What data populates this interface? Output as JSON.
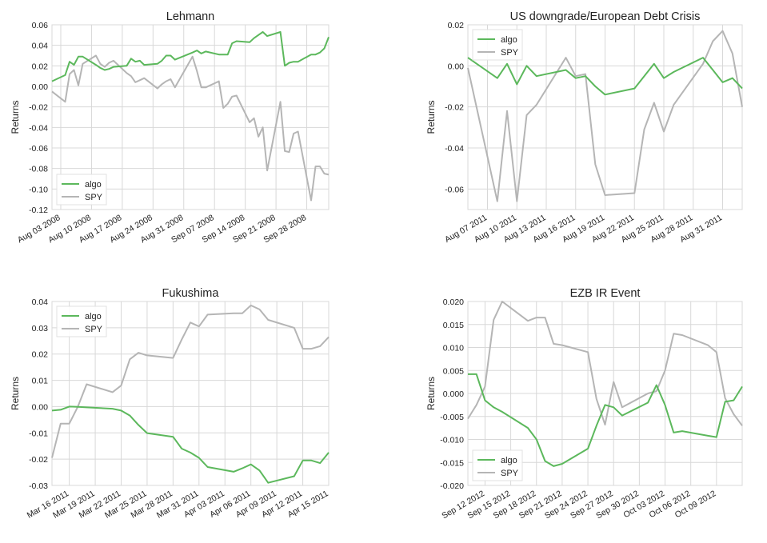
{
  "colors": {
    "algo": "#5cb85c",
    "spy": "#b5b5b5",
    "grid": "#d8d8d8"
  },
  "chart_data": [
    {
      "type": "line",
      "title": "Lehmann",
      "ylabel": "Returns",
      "ylim": [
        -0.12,
        0.06
      ],
      "yticks": [
        -0.12,
        -0.1,
        -0.08,
        -0.06,
        -0.04,
        -0.02,
        0.0,
        0.02,
        0.04,
        0.06
      ],
      "ytick_labels": [
        "-0.12",
        "-0.10",
        "-0.08",
        "-0.06",
        "-0.04",
        "-0.02",
        "0.00",
        "0.02",
        "0.04",
        "0.06"
      ],
      "xlim": [
        "2008-08-01",
        "2008-10-03"
      ],
      "xticks": [
        "2008-08-03",
        "2008-08-10",
        "2008-08-17",
        "2008-08-24",
        "2008-08-31",
        "2008-09-07",
        "2008-09-14",
        "2008-09-21",
        "2008-09-28"
      ],
      "xtick_labels": [
        "Aug 03 2008",
        "Aug 10 2008",
        "Aug 17 2008",
        "Aug 24 2008",
        "Aug 31 2008",
        "Sep 07 2008",
        "Sep 14 2008",
        "Sep 21 2008",
        "Sep 28 2008"
      ],
      "legend": "lower-left",
      "series": [
        {
          "name": "algo",
          "x": [
            "2008-08-01",
            "2008-08-04",
            "2008-08-05",
            "2008-08-06",
            "2008-08-07",
            "2008-08-08",
            "2008-08-11",
            "2008-08-12",
            "2008-08-13",
            "2008-08-14",
            "2008-08-15",
            "2008-08-18",
            "2008-08-19",
            "2008-08-20",
            "2008-08-21",
            "2008-08-22",
            "2008-08-25",
            "2008-08-26",
            "2008-08-27",
            "2008-08-28",
            "2008-08-29",
            "2008-09-02",
            "2008-09-03",
            "2008-09-04",
            "2008-09-05",
            "2008-09-08",
            "2008-09-09",
            "2008-09-10",
            "2008-09-11",
            "2008-09-12",
            "2008-09-15",
            "2008-09-16",
            "2008-09-17",
            "2008-09-18",
            "2008-09-19",
            "2008-09-22",
            "2008-09-23",
            "2008-09-24",
            "2008-09-25",
            "2008-09-26",
            "2008-09-29",
            "2008-09-30",
            "2008-10-01",
            "2008-10-02",
            "2008-10-03"
          ],
          "y": [
            0.005,
            0.011,
            0.024,
            0.021,
            0.029,
            0.029,
            0.021,
            0.018,
            0.016,
            0.017,
            0.019,
            0.02,
            0.027,
            0.024,
            0.025,
            0.021,
            0.022,
            0.025,
            0.03,
            0.03,
            0.026,
            0.033,
            0.035,
            0.032,
            0.034,
            0.031,
            0.031,
            0.031,
            0.042,
            0.044,
            0.043,
            0.047,
            0.05,
            0.053,
            0.049,
            0.053,
            0.02,
            0.023,
            0.024,
            0.024,
            0.031,
            0.031,
            0.033,
            0.037,
            0.048
          ]
        },
        {
          "name": "SPY",
          "x": [
            "2008-08-01",
            "2008-08-04",
            "2008-08-05",
            "2008-08-06",
            "2008-08-07",
            "2008-08-08",
            "2008-08-11",
            "2008-08-12",
            "2008-08-13",
            "2008-08-14",
            "2008-08-15",
            "2008-08-18",
            "2008-08-19",
            "2008-08-20",
            "2008-08-21",
            "2008-08-22",
            "2008-08-25",
            "2008-08-26",
            "2008-08-27",
            "2008-08-28",
            "2008-08-29",
            "2008-09-02",
            "2008-09-03",
            "2008-09-04",
            "2008-09-05",
            "2008-09-08",
            "2008-09-09",
            "2008-09-10",
            "2008-09-11",
            "2008-09-12",
            "2008-09-15",
            "2008-09-16",
            "2008-09-17",
            "2008-09-18",
            "2008-09-19",
            "2008-09-22",
            "2008-09-23",
            "2008-09-24",
            "2008-09-25",
            "2008-09-26",
            "2008-09-29",
            "2008-09-30",
            "2008-10-01",
            "2008-10-02",
            "2008-10-03"
          ],
          "y": [
            -0.005,
            -0.015,
            0.012,
            0.016,
            0.001,
            0.022,
            0.03,
            0.022,
            0.019,
            0.023,
            0.025,
            0.013,
            0.01,
            0.004,
            0.006,
            0.008,
            -0.002,
            0.002,
            0.005,
            0.007,
            -0.001,
            0.029,
            0.015,
            -0.001,
            -0.001,
            0.005,
            -0.021,
            -0.017,
            -0.01,
            -0.009,
            -0.035,
            -0.031,
            -0.049,
            -0.04,
            -0.082,
            -0.015,
            -0.063,
            -0.064,
            -0.046,
            -0.044,
            -0.111,
            -0.078,
            -0.078,
            -0.085,
            -0.086
          ]
        }
      ]
    },
    {
      "type": "line",
      "title": "US downgrade/European Debt Crisis",
      "ylabel": "Returns",
      "ylim": [
        -0.07,
        0.02
      ],
      "yticks": [
        -0.06,
        -0.04,
        -0.02,
        0.0,
        0.02
      ],
      "ytick_labels": [
        "-0.06",
        "-0.04",
        "-0.02",
        "0.00",
        "0.02"
      ],
      "xlim": [
        "2011-08-05",
        "2011-09-02"
      ],
      "xticks": [
        "2011-08-07",
        "2011-08-10",
        "2011-08-13",
        "2011-08-16",
        "2011-08-19",
        "2011-08-22",
        "2011-08-25",
        "2011-08-28",
        "2011-08-31"
      ],
      "xtick_labels": [
        "Aug 07 2011",
        "Aug 10 2011",
        "Aug 13 2011",
        "Aug 16 2011",
        "Aug 19 2011",
        "Aug 22 2011",
        "Aug 25 2011",
        "Aug 28 2011",
        "Aug 31 2011"
      ],
      "legend": "top-left",
      "series": [
        {
          "name": "algo",
          "x": [
            "2011-08-05",
            "2011-08-08",
            "2011-08-09",
            "2011-08-10",
            "2011-08-11",
            "2011-08-12",
            "2011-08-15",
            "2011-08-16",
            "2011-08-17",
            "2011-08-18",
            "2011-08-19",
            "2011-08-22",
            "2011-08-23",
            "2011-08-24",
            "2011-08-25",
            "2011-08-26",
            "2011-08-29",
            "2011-08-30",
            "2011-08-31",
            "2011-09-01",
            "2011-09-02"
          ],
          "y": [
            0.004,
            -0.006,
            0.001,
            -0.009,
            0.0,
            -0.005,
            -0.002,
            -0.006,
            -0.005,
            -0.01,
            -0.014,
            -0.011,
            -0.005,
            0.001,
            -0.006,
            -0.003,
            0.004,
            -0.002,
            -0.008,
            -0.006,
            -0.011
          ]
        },
        {
          "name": "SPY",
          "x": [
            "2011-08-05",
            "2011-08-08",
            "2011-08-09",
            "2011-08-10",
            "2011-08-11",
            "2011-08-12",
            "2011-08-15",
            "2011-08-16",
            "2011-08-17",
            "2011-08-18",
            "2011-08-19",
            "2011-08-22",
            "2011-08-23",
            "2011-08-24",
            "2011-08-25",
            "2011-08-26",
            "2011-08-29",
            "2011-08-30",
            "2011-08-31",
            "2011-09-01",
            "2011-09-02"
          ],
          "y": [
            -0.001,
            -0.066,
            -0.022,
            -0.066,
            -0.024,
            -0.019,
            0.004,
            -0.005,
            -0.004,
            -0.048,
            -0.063,
            -0.062,
            -0.031,
            -0.018,
            -0.032,
            -0.019,
            0.001,
            0.012,
            0.017,
            0.006,
            -0.02
          ]
        }
      ]
    },
    {
      "type": "line",
      "title": "Fukushima",
      "ylabel": "Returns",
      "ylim": [
        -0.03,
        0.04
      ],
      "yticks": [
        -0.03,
        -0.02,
        -0.01,
        0.0,
        0.01,
        0.02,
        0.03,
        0.04
      ],
      "ytick_labels": [
        "-0.03",
        "-0.02",
        "-0.01",
        "0.00",
        "0.01",
        "0.02",
        "0.03",
        "0.04"
      ],
      "xlim": [
        "2011-03-14",
        "2011-04-15"
      ],
      "xticks": [
        "2011-03-16",
        "2011-03-19",
        "2011-03-22",
        "2011-03-25",
        "2011-03-28",
        "2011-03-31",
        "2011-04-03",
        "2011-04-06",
        "2011-04-09",
        "2011-04-12",
        "2011-04-15"
      ],
      "xtick_labels": [
        "Mar 16 2011",
        "Mar 19 2011",
        "Mar 22 2011",
        "Mar 25 2011",
        "Mar 28 2011",
        "Mar 31 2011",
        "Apr 03 2011",
        "Apr 06 2011",
        "Apr 09 2011",
        "Apr 12 2011",
        "Apr 15 2011"
      ],
      "legend": "top-left",
      "series": [
        {
          "name": "algo",
          "x": [
            "2011-03-14",
            "2011-03-15",
            "2011-03-16",
            "2011-03-17",
            "2011-03-18",
            "2011-03-21",
            "2011-03-22",
            "2011-03-23",
            "2011-03-24",
            "2011-03-25",
            "2011-03-28",
            "2011-03-29",
            "2011-03-30",
            "2011-03-31",
            "2011-04-01",
            "2011-04-04",
            "2011-04-05",
            "2011-04-06",
            "2011-04-07",
            "2011-04-08",
            "2011-04-11",
            "2011-04-12",
            "2011-04-13",
            "2011-04-14",
            "2011-04-15"
          ],
          "y": [
            -0.0015,
            -0.0012,
            0.0,
            -0.0001,
            -0.0003,
            -0.0008,
            -0.0015,
            -0.0034,
            -0.007,
            -0.0101,
            -0.0115,
            -0.016,
            -0.0175,
            -0.0195,
            -0.023,
            -0.0248,
            -0.0235,
            -0.022,
            -0.0243,
            -0.029,
            -0.0265,
            -0.0205,
            -0.0205,
            -0.0215,
            -0.0175
          ]
        },
        {
          "name": "SPY",
          "x": [
            "2011-03-14",
            "2011-03-15",
            "2011-03-16",
            "2011-03-17",
            "2011-03-18",
            "2011-03-21",
            "2011-03-22",
            "2011-03-23",
            "2011-03-24",
            "2011-03-25",
            "2011-03-28",
            "2011-03-29",
            "2011-03-30",
            "2011-03-31",
            "2011-04-01",
            "2011-04-04",
            "2011-04-05",
            "2011-04-06",
            "2011-04-07",
            "2011-04-08",
            "2011-04-11",
            "2011-04-12",
            "2011-04-13",
            "2011-04-14",
            "2011-04-15"
          ],
          "y": [
            -0.0195,
            -0.0065,
            -0.0065,
            0.0,
            0.0085,
            0.0055,
            0.008,
            0.018,
            0.0205,
            0.0195,
            0.0185,
            0.0255,
            0.032,
            0.0305,
            0.035,
            0.0355,
            0.0355,
            0.0385,
            0.037,
            0.033,
            0.03,
            0.022,
            0.022,
            0.023,
            0.0265
          ]
        }
      ]
    },
    {
      "type": "line",
      "title": "EZB IR Event",
      "ylabel": "Returns",
      "ylim": [
        -0.02,
        0.02
      ],
      "yticks": [
        -0.02,
        -0.015,
        -0.01,
        -0.005,
        0.0,
        0.005,
        0.01,
        0.015,
        0.02
      ],
      "ytick_labels": [
        "-0.020",
        "-0.015",
        "-0.010",
        "-0.005",
        "0.000",
        "0.005",
        "0.010",
        "0.015",
        "0.020"
      ],
      "xlim": [
        "2012-09-10",
        "2012-10-12"
      ],
      "xticks": [
        "2012-09-12",
        "2012-09-15",
        "2012-09-18",
        "2012-09-21",
        "2012-09-24",
        "2012-09-27",
        "2012-09-30",
        "2012-10-03",
        "2012-10-06",
        "2012-10-09"
      ],
      "xtick_labels": [
        "Sep 12 2012",
        "Sep 15 2012",
        "Sep 18 2012",
        "Sep 21 2012",
        "Sep 24 2012",
        "Sep 27 2012",
        "Sep 30 2012",
        "Oct 03 2012",
        "Oct 06 2012",
        "Oct 09 2012"
      ],
      "legend": "lower-left",
      "series": [
        {
          "name": "algo",
          "x": [
            "2012-09-10",
            "2012-09-11",
            "2012-09-12",
            "2012-09-13",
            "2012-09-14",
            "2012-09-17",
            "2012-09-18",
            "2012-09-19",
            "2012-09-20",
            "2012-09-21",
            "2012-09-24",
            "2012-09-25",
            "2012-09-26",
            "2012-09-27",
            "2012-09-28",
            "2012-10-01",
            "2012-10-02",
            "2012-10-03",
            "2012-10-04",
            "2012-10-05",
            "2012-10-08",
            "2012-10-09",
            "2012-10-10",
            "2012-10-11",
            "2012-10-12"
          ],
          "y": [
            0.0042,
            0.0042,
            -0.0015,
            -0.003,
            -0.004,
            -0.0075,
            -0.01,
            -0.0147,
            -0.0158,
            -0.0153,
            -0.012,
            -0.007,
            -0.0025,
            -0.003,
            -0.0048,
            -0.002,
            0.0018,
            -0.0025,
            -0.0085,
            -0.0082,
            -0.0092,
            -0.0095,
            -0.0018,
            -0.0015,
            0.0015
          ]
        },
        {
          "name": "SPY",
          "x": [
            "2012-09-10",
            "2012-09-11",
            "2012-09-12",
            "2012-09-13",
            "2012-09-14",
            "2012-09-17",
            "2012-09-18",
            "2012-09-19",
            "2012-09-20",
            "2012-09-21",
            "2012-09-24",
            "2012-09-25",
            "2012-09-26",
            "2012-09-27",
            "2012-09-28",
            "2012-10-01",
            "2012-10-02",
            "2012-10-03",
            "2012-10-04",
            "2012-10-05",
            "2012-10-08",
            "2012-10-09",
            "2012-10-10",
            "2012-10-11",
            "2012-10-12"
          ],
          "y": [
            -0.0055,
            -0.0025,
            0.0015,
            0.016,
            0.02,
            0.0158,
            0.0165,
            0.0165,
            0.0108,
            0.0105,
            0.009,
            -0.0012,
            -0.0068,
            0.0025,
            -0.003,
            0.0,
            0.0005,
            0.005,
            0.013,
            0.0127,
            0.0105,
            0.009,
            -0.001,
            -0.0045,
            -0.007
          ]
        }
      ]
    }
  ]
}
